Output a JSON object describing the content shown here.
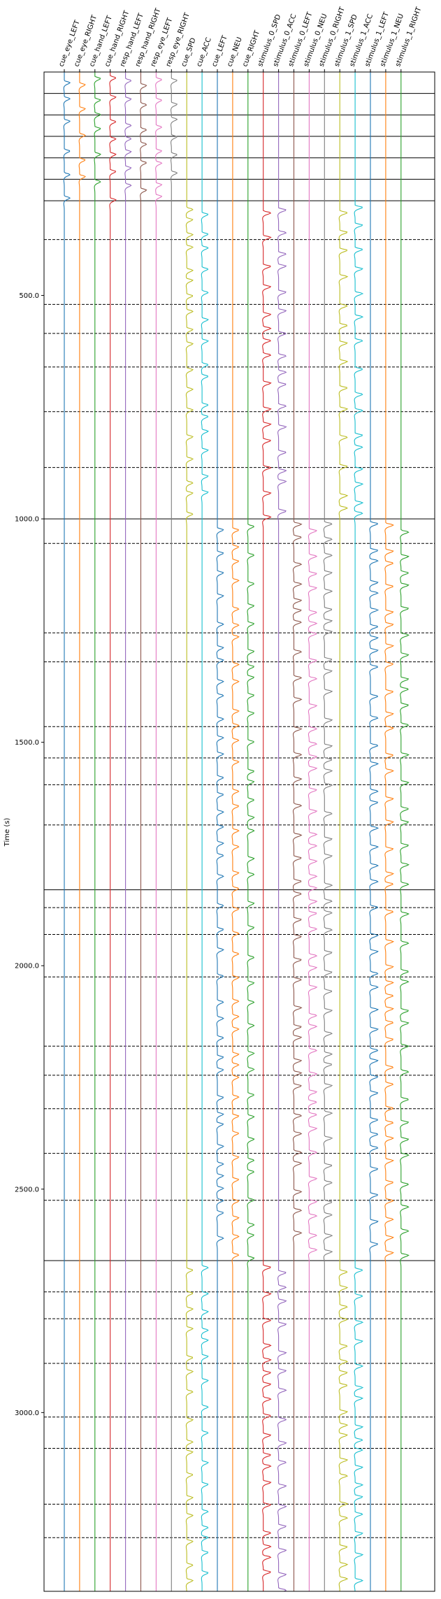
{
  "chart_data": {
    "type": "line",
    "ylabel": "Time (s)",
    "ylim": [
      0,
      3400
    ],
    "y_inverted": true,
    "y_ticks": [
      "500.0",
      "1000.0",
      "1500.0",
      "2000.0",
      "2500.0",
      "3000.0"
    ],
    "y_tick_values": [
      500,
      1000,
      1500,
      2000,
      2500,
      3000
    ],
    "grid": false,
    "solid_separators": [
      0,
      48,
      96,
      144,
      192,
      240,
      288,
      1000,
      1830,
      2660
    ],
    "dashed_separators": [
      375,
      520,
      585,
      660,
      760,
      885,
      1055,
      1255,
      1320,
      1465,
      1535,
      1595,
      1685,
      1870,
      1930,
      2025,
      2180,
      2245,
      2320,
      2420,
      2525,
      2730,
      2790,
      2890,
      3010,
      3080,
      3205,
      3280
    ],
    "columns": [
      {
        "label": "cue_eye_LEFT",
        "color": "#1f77b4",
        "active": [
          [
            0,
            288
          ]
        ],
        "amp": 1.2
      },
      {
        "label": "cue_eye_RIGHT",
        "color": "#ff7f0e",
        "active": [
          [
            0,
            288
          ]
        ],
        "amp": 1.2
      },
      {
        "label": "cue_hand_LEFT",
        "color": "#2ca02c",
        "active": [
          [
            0,
            288
          ]
        ],
        "amp": 1.2
      },
      {
        "label": "cue_hand_RIGHT",
        "color": "#d62728",
        "active": [
          [
            0,
            288
          ]
        ],
        "amp": 1.2
      },
      {
        "label": "resp_hand_LEFT",
        "color": "#9467bd",
        "active": [
          [
            0,
            288
          ]
        ],
        "amp": 1.2
      },
      {
        "label": "resp_hand_RIGHT",
        "color": "#8c564b",
        "active": [
          [
            0,
            288
          ]
        ],
        "amp": 1.2
      },
      {
        "label": "resp_eye_LEFT",
        "color": "#e377c2",
        "active": [
          [
            0,
            288
          ]
        ],
        "amp": 1.2
      },
      {
        "label": "resp_eye_RIGHT",
        "color": "#7f7f7f",
        "active": [
          [
            0,
            288
          ]
        ],
        "amp": 1.2
      },
      {
        "label": "cue_SPD",
        "color": "#bcbd22",
        "active": [
          [
            288,
            1000
          ],
          [
            2660,
            3400
          ]
        ],
        "amp": 1.3
      },
      {
        "label": "cue_ACC",
        "color": "#17becf",
        "active": [
          [
            288,
            1000
          ],
          [
            2660,
            3400
          ]
        ],
        "amp": 1.3
      },
      {
        "label": "cue_LEFT",
        "color": "#1f77b4",
        "active": [
          [
            1000,
            2660
          ]
        ],
        "amp": 1.3
      },
      {
        "label": "cue_NEU",
        "color": "#ff7f0e",
        "active": [
          [
            1000,
            2660
          ]
        ],
        "amp": 1.3
      },
      {
        "label": "cue_RIGHT",
        "color": "#2ca02c",
        "active": [
          [
            1000,
            2660
          ]
        ],
        "amp": 1.3
      },
      {
        "label": "stimulus_0_SPD",
        "color": "#d62728",
        "active": [
          [
            288,
            1000
          ],
          [
            2660,
            3400
          ]
        ],
        "amp": 1.6
      },
      {
        "label": "stimulus_0_ACC",
        "color": "#9467bd",
        "active": [
          [
            288,
            1000
          ],
          [
            2660,
            3400
          ]
        ],
        "amp": 1.6
      },
      {
        "label": "stimulus_0_LEFT",
        "color": "#8c564b",
        "active": [
          [
            1000,
            2660
          ]
        ],
        "amp": 1.6
      },
      {
        "label": "stimulus_0_NEU",
        "color": "#e377c2",
        "active": [
          [
            1000,
            2660
          ]
        ],
        "amp": 1.6
      },
      {
        "label": "stimulus_0_RIGHT",
        "color": "#7f7f7f",
        "active": [
          [
            1000,
            2660
          ]
        ],
        "amp": 1.6
      },
      {
        "label": "stimulus_1_SPD",
        "color": "#bcbd22",
        "active": [
          [
            288,
            1000
          ],
          [
            2660,
            3400
          ]
        ],
        "amp": 1.6
      },
      {
        "label": "stimulus_1_ACC",
        "color": "#17becf",
        "active": [
          [
            288,
            1000
          ],
          [
            2660,
            3400
          ]
        ],
        "amp": 1.6
      },
      {
        "label": "stimulus_1_LEFT",
        "color": "#1f77b4",
        "active": [
          [
            1000,
            2660
          ]
        ],
        "amp": 1.6
      },
      {
        "label": "stimulus_1_NEU",
        "color": "#ff7f0e",
        "active": [
          [
            1000,
            2660
          ]
        ],
        "amp": 1.6
      },
      {
        "label": "stimulus_1_RIGHT",
        "color": "#2ca02c",
        "active": [
          [
            1000,
            2660
          ]
        ],
        "amp": 1.6
      }
    ]
  }
}
